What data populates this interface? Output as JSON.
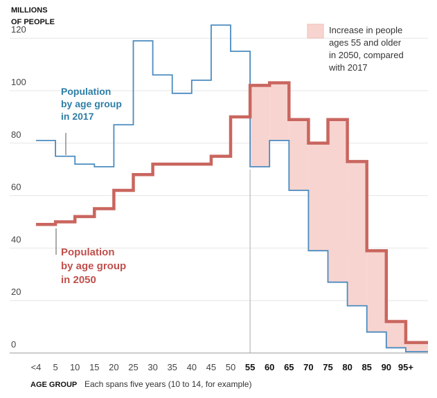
{
  "chart_data": {
    "type": "line",
    "title": "",
    "ylabel": [
      "MILLIONS",
      "OF PEOPLE"
    ],
    "xlabel": "AGE GROUP",
    "xlabel_note": "Each spans five years (10 to 14, for example)",
    "ylim": [
      0,
      130
    ],
    "yticks": [
      0,
      20,
      40,
      60,
      80,
      100,
      120
    ],
    "categories": [
      "<4",
      "5",
      "10",
      "15",
      "20",
      "25",
      "30",
      "35",
      "40",
      "45",
      "50",
      "55",
      "60",
      "65",
      "70",
      "75",
      "80",
      "85",
      "90",
      "95+"
    ],
    "bold_categories": [
      "55",
      "60",
      "65",
      "70",
      "75",
      "80",
      "85",
      "90",
      "95+"
    ],
    "series": [
      {
        "name": "Population by age group in 2017",
        "label_lines": [
          "Population",
          "by age group",
          "in 2017"
        ],
        "color": "#4a8bbf",
        "values": [
          81,
          75,
          72,
          71,
          87,
          119,
          106,
          99,
          104,
          125,
          115,
          71,
          81,
          62,
          39,
          27,
          18,
          8,
          2,
          0.5
        ]
      },
      {
        "name": "Population by age group in 2050",
        "label_lines": [
          "Population",
          "by age group",
          "in 2050"
        ],
        "color": "#c9665f",
        "values": [
          49,
          50,
          52,
          55,
          62,
          68,
          72,
          72,
          72,
          75,
          90,
          102,
          103,
          89,
          80,
          89,
          73,
          39,
          12,
          4
        ]
      }
    ],
    "shaded_region": {
      "label_lines": [
        "Increase in people",
        "ages 55 and older",
        "in 2050, compared",
        "with 2017"
      ],
      "fill": "#f7d4d0",
      "from_category": "55"
    }
  }
}
